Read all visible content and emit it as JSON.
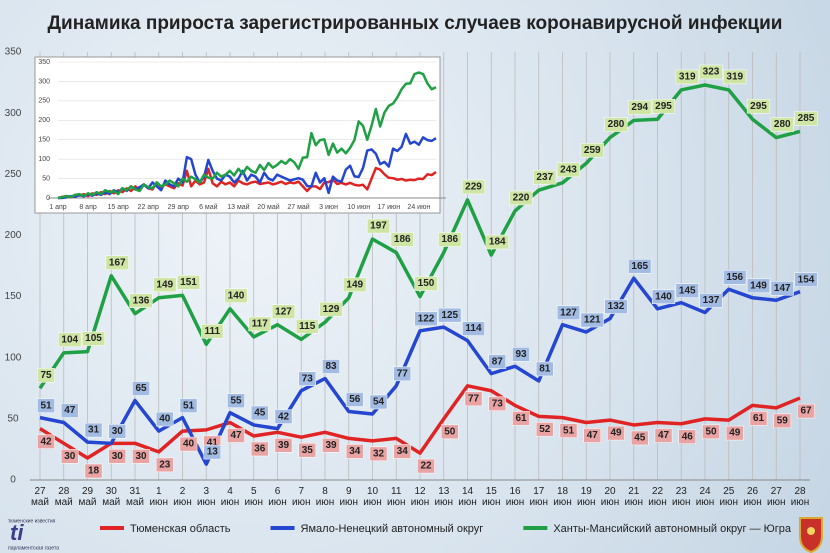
{
  "chart_data": [
    {
      "type": "line",
      "title": "Динамика прироста зарегистрированных случаев коронавирусной инфекции",
      "categories": [
        "27 май",
        "28 май",
        "29 май",
        "30 май",
        "31 май",
        "1 июн",
        "2 июн",
        "3 июн",
        "4 июн",
        "5 июн",
        "6 июн",
        "7 июн",
        "8 июн",
        "9 июн",
        "10 июн",
        "11 июн",
        "12 июн",
        "13 июн",
        "14 июн",
        "15 июн",
        "16 июн",
        "17 июн",
        "18 июн",
        "19 июн",
        "20 июн",
        "21 июн",
        "22 июн",
        "23 июн",
        "24 июн",
        "25 июн",
        "26 июн",
        "27 июн",
        "28 июн"
      ],
      "series": [
        {
          "name": "Тюменская область",
          "color": "#e02424",
          "label_fill": "#eaa3a3",
          "values": [
            42,
            30,
            18,
            30,
            30,
            23,
            40,
            41,
            47,
            36,
            39,
            35,
            39,
            34,
            32,
            34,
            22,
            50,
            77,
            73,
            61,
            52,
            51,
            47,
            49,
            45,
            47,
            46,
            50,
            49,
            61,
            59,
            67
          ]
        },
        {
          "name": "Ямало-Ненецкий автономный округ",
          "color": "#2446d0",
          "label_fill": "#a2bbe2",
          "values": [
            51,
            47,
            31,
            30,
            65,
            40,
            51,
            13,
            55,
            45,
            42,
            73,
            83,
            56,
            54,
            77,
            122,
            125,
            114,
            87,
            93,
            81,
            127,
            121,
            132,
            165,
            140,
            145,
            137,
            156,
            149,
            147,
            154
          ]
        },
        {
          "name": "Ханты-Мансийский автономный округ — Югра",
          "color": "#1fa044",
          "label_fill": "#cfe5a4",
          "values": [
            75,
            104,
            105,
            167,
            136,
            149,
            151,
            111,
            140,
            117,
            127,
            115,
            129,
            149,
            197,
            186,
            150,
            186,
            229,
            184,
            220,
            237,
            243,
            259,
            280,
            294,
            295,
            319,
            323,
            319,
            295,
            280,
            285
          ]
        }
      ],
      "ylim": [
        0,
        350
      ],
      "yticks": [
        0,
        50,
        100,
        150,
        200,
        250,
        300,
        350
      ],
      "grid": true,
      "legend": "bottom"
    },
    {
      "type": "line",
      "categories": [
        "1 апр",
        null,
        null,
        null,
        null,
        null,
        null,
        "8 апр",
        null,
        null,
        null,
        null,
        null,
        null,
        "15 апр",
        null,
        null,
        null,
        null,
        null,
        null,
        "22 апр",
        null,
        null,
        null,
        null,
        null,
        null,
        "29 апр",
        null,
        null,
        null,
        null,
        null,
        null,
        "6 май",
        null,
        null,
        null,
        null,
        null,
        null,
        "13 май",
        null,
        null,
        null,
        null,
        null,
        null,
        "20 май",
        null,
        null,
        null,
        null,
        null,
        null,
        "27 май",
        null,
        null,
        null,
        null,
        null,
        null,
        "3 июн",
        null,
        null,
        null,
        null,
        null,
        null,
        "10 июн",
        null,
        null,
        null,
        null,
        null,
        null,
        "17 июн",
        null,
        null,
        null,
        null,
        null,
        null,
        "24 июн",
        null,
        null,
        null,
        null
      ],
      "series": [
        {
          "color": "#e02424",
          "values": [
            0,
            3,
            5,
            2,
            8,
            6,
            10,
            5,
            12,
            8,
            15,
            10,
            18,
            12,
            20,
            15,
            25,
            18,
            30,
            20,
            35,
            25,
            22,
            40,
            28,
            35,
            30,
            25,
            38,
            32,
            70,
            30,
            45,
            35,
            40,
            75,
            38,
            30,
            42,
            35,
            40,
            30,
            45,
            38,
            35,
            40,
            42,
            36,
            38,
            40,
            35,
            38,
            42,
            36,
            40,
            38,
            42,
            30,
            18,
            30,
            30,
            23,
            40,
            41,
            47,
            36,
            39,
            35,
            39,
            34,
            32,
            34,
            22,
            50,
            77,
            73,
            61,
            52,
            51,
            47,
            49,
            45,
            47,
            46,
            50,
            49,
            61,
            59,
            67
          ]
        },
        {
          "color": "#2446d0",
          "values": [
            0,
            0,
            2,
            5,
            3,
            8,
            4,
            10,
            6,
            12,
            8,
            15,
            10,
            20,
            14,
            25,
            18,
            30,
            22,
            28,
            35,
            25,
            40,
            30,
            20,
            45,
            35,
            30,
            50,
            40,
            105,
            100,
            60,
            40,
            55,
            98,
            70,
            50,
            45,
            60,
            55,
            40,
            50,
            70,
            45,
            60,
            55,
            40,
            65,
            50,
            45,
            60,
            55,
            50,
            45,
            48,
            51,
            47,
            31,
            30,
            65,
            40,
            51,
            13,
            55,
            45,
            42,
            73,
            83,
            56,
            54,
            77,
            122,
            125,
            114,
            87,
            93,
            81,
            127,
            121,
            132,
            165,
            140,
            145,
            137,
            156,
            149,
            147,
            154
          ]
        },
        {
          "color": "#1fa044",
          "values": [
            0,
            2,
            5,
            3,
            8,
            10,
            5,
            12,
            8,
            15,
            10,
            20,
            15,
            18,
            10,
            25,
            20,
            30,
            22,
            18,
            35,
            28,
            25,
            40,
            30,
            35,
            45,
            38,
            30,
            50,
            42,
            55,
            48,
            40,
            60,
            52,
            50,
            65,
            55,
            60,
            70,
            58,
            75,
            62,
            80,
            70,
            65,
            85,
            72,
            90,
            78,
            85,
            95,
            88,
            100,
            92,
            75,
            104,
            105,
            167,
            136,
            149,
            151,
            111,
            140,
            117,
            127,
            115,
            129,
            149,
            197,
            186,
            150,
            186,
            229,
            184,
            220,
            237,
            243,
            259,
            280,
            294,
            295,
            319,
            323,
            319,
            295,
            280,
            285
          ]
        }
      ],
      "ylim": [
        0,
        350
      ],
      "yticks": [
        0,
        50,
        100,
        150,
        200,
        250,
        300,
        350
      ],
      "grid": true
    }
  ],
  "logo": {
    "top": "тюменские известия",
    "mark": "ti",
    "bottom": "парламентская газета"
  }
}
